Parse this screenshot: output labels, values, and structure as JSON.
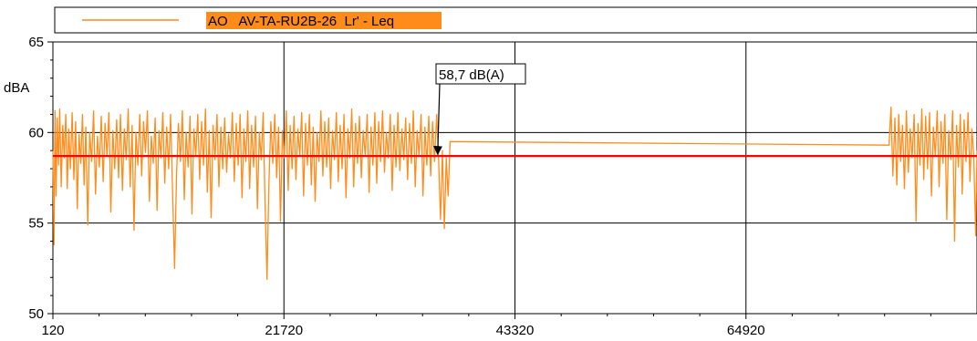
{
  "chart_data": {
    "type": "line",
    "ylabel": "dBA",
    "xlim": [
      120,
      86520
    ],
    "ylim": [
      50,
      65
    ],
    "x_ticks": [
      120,
      21720,
      43320,
      64920
    ],
    "y_ticks": [
      50,
      55,
      60,
      65
    ],
    "grid": true,
    "legend_position": "top",
    "colors": {
      "series": "#ff8c1a",
      "reference": "#ff0000",
      "legend_highlight": "#ff8c1a"
    },
    "series": [
      {
        "name": "AO   AV-TA-RU2B-26  Lr' - Leq",
        "points": [
          [
            120,
            59.0
          ],
          [
            220,
            53.8
          ],
          [
            320,
            61.2
          ],
          [
            420,
            56.5
          ],
          [
            520,
            60.8
          ],
          [
            640,
            58.2
          ],
          [
            760,
            61.3
          ],
          [
            900,
            57.0
          ],
          [
            1040,
            60.4
          ],
          [
            1180,
            58.6
          ],
          [
            1320,
            61.0
          ],
          [
            1460,
            56.9
          ],
          [
            1600,
            60.2
          ],
          [
            1760,
            58.0
          ],
          [
            1920,
            61.1
          ],
          [
            2080,
            57.4
          ],
          [
            2240,
            60.6
          ],
          [
            2400,
            55.8
          ],
          [
            2560,
            59.9
          ],
          [
            2720,
            58.3
          ],
          [
            2880,
            61.0
          ],
          [
            3040,
            57.1
          ],
          [
            3200,
            60.3
          ],
          [
            3380,
            54.9
          ],
          [
            3560,
            60.0
          ],
          [
            3740,
            58.4
          ],
          [
            3920,
            61.2
          ],
          [
            4100,
            56.6
          ],
          [
            4280,
            59.8
          ],
          [
            4460,
            58.1
          ],
          [
            4640,
            60.9
          ],
          [
            4820,
            57.3
          ],
          [
            5000,
            60.5
          ],
          [
            5180,
            58.7
          ],
          [
            5360,
            61.1
          ],
          [
            5540,
            55.6
          ],
          [
            5720,
            60.1
          ],
          [
            5900,
            58.0
          ],
          [
            6080,
            60.7
          ],
          [
            6260,
            57.5
          ],
          [
            6440,
            61.0
          ],
          [
            6620,
            56.8
          ],
          [
            6800,
            60.2
          ],
          [
            6980,
            58.5
          ],
          [
            7160,
            61.3
          ],
          [
            7340,
            57.0
          ],
          [
            7520,
            60.4
          ],
          [
            7700,
            54.6
          ],
          [
            7880,
            60.0
          ],
          [
            8060,
            58.2
          ],
          [
            8240,
            61.0
          ],
          [
            8420,
            57.6
          ],
          [
            8600,
            60.6
          ],
          [
            8780,
            58.9
          ],
          [
            8960,
            61.2
          ],
          [
            9140,
            56.2
          ],
          [
            9320,
            59.8
          ],
          [
            9500,
            58.3
          ],
          [
            9680,
            60.8
          ],
          [
            9860,
            55.7
          ],
          [
            10040,
            60.1
          ],
          [
            10220,
            58.6
          ],
          [
            10400,
            61.1
          ],
          [
            10580,
            57.2
          ],
          [
            10760,
            60.3
          ],
          [
            10940,
            58.0
          ],
          [
            11120,
            61.0
          ],
          [
            11300,
            56.9
          ],
          [
            11500,
            52.5
          ],
          [
            11680,
            57.6
          ],
          [
            11860,
            60.5
          ],
          [
            12040,
            58.4
          ],
          [
            12220,
            61.2
          ],
          [
            12400,
            56.3
          ],
          [
            12580,
            60.0
          ],
          [
            12760,
            58.1
          ],
          [
            12940,
            60.9
          ],
          [
            13120,
            55.5
          ],
          [
            13300,
            60.2
          ],
          [
            13480,
            58.7
          ],
          [
            13660,
            61.0
          ],
          [
            13840,
            57.4
          ],
          [
            14020,
            60.6
          ],
          [
            14200,
            58.2
          ],
          [
            14380,
            61.3
          ],
          [
            14560,
            56.7
          ],
          [
            14740,
            60.1
          ],
          [
            14920,
            55.3
          ],
          [
            15100,
            60.4
          ],
          [
            15280,
            58.5
          ],
          [
            15460,
            61.0
          ],
          [
            15640,
            57.0
          ],
          [
            15820,
            60.3
          ],
          [
            16000,
            58.0
          ],
          [
            16180,
            60.8
          ],
          [
            16360,
            57.8
          ],
          [
            16540,
            59.9
          ],
          [
            16720,
            58.6
          ],
          [
            16900,
            61.1
          ],
          [
            17080,
            57.3
          ],
          [
            17260,
            60.5
          ],
          [
            17440,
            58.2
          ],
          [
            17620,
            61.0
          ],
          [
            17800,
            56.4
          ],
          [
            17980,
            60.2
          ],
          [
            18160,
            58.4
          ],
          [
            18340,
            61.2
          ],
          [
            18520,
            56.9
          ],
          [
            18700,
            60.4
          ],
          [
            18880,
            58.1
          ],
          [
            19060,
            60.9
          ],
          [
            19240,
            55.8
          ],
          [
            19420,
            60.0
          ],
          [
            19600,
            58.5
          ],
          [
            19780,
            61.1
          ],
          [
            19960,
            56.0
          ],
          [
            20140,
            51.9
          ],
          [
            20320,
            57.2
          ],
          [
            20500,
            60.6
          ],
          [
            20680,
            58.3
          ],
          [
            20860,
            61.0
          ],
          [
            21040,
            57.5
          ],
          [
            21220,
            60.3
          ],
          [
            21400,
            55.1
          ],
          [
            21580,
            60.1
          ],
          [
            21760,
            58.6
          ],
          [
            21940,
            61.2
          ],
          [
            22120,
            56.8
          ],
          [
            22300,
            60.4
          ],
          [
            22480,
            58.0
          ],
          [
            22660,
            60.9
          ],
          [
            22840,
            57.4
          ],
          [
            23020,
            60.2
          ],
          [
            23200,
            58.7
          ],
          [
            23380,
            61.1
          ],
          [
            23560,
            56.5
          ],
          [
            23740,
            60.5
          ],
          [
            23920,
            58.2
          ],
          [
            24100,
            61.0
          ],
          [
            24280,
            57.1
          ],
          [
            24460,
            60.3
          ],
          [
            24640,
            56.2
          ],
          [
            24820,
            60.0
          ],
          [
            25000,
            58.4
          ],
          [
            25180,
            61.2
          ],
          [
            25360,
            57.6
          ],
          [
            25540,
            60.6
          ],
          [
            25720,
            58.1
          ],
          [
            25900,
            60.8
          ],
          [
            26080,
            56.9
          ],
          [
            26260,
            60.1
          ],
          [
            26440,
            58.5
          ],
          [
            26620,
            61.1
          ],
          [
            26800,
            57.3
          ],
          [
            26980,
            60.4
          ],
          [
            27160,
            58.0
          ],
          [
            27340,
            61.0
          ],
          [
            27520,
            56.4
          ],
          [
            27700,
            60.2
          ],
          [
            27880,
            58.6
          ],
          [
            28060,
            61.3
          ],
          [
            28240,
            57.0
          ],
          [
            28420,
            60.5
          ],
          [
            28600,
            58.3
          ],
          [
            28780,
            60.9
          ],
          [
            28960,
            57.5
          ],
          [
            29140,
            60.1
          ],
          [
            29320,
            58.7
          ],
          [
            29500,
            61.0
          ],
          [
            29680,
            56.7
          ],
          [
            29860,
            60.3
          ],
          [
            30040,
            58.2
          ],
          [
            30220,
            61.1
          ],
          [
            30400,
            57.2
          ],
          [
            30580,
            60.6
          ],
          [
            30760,
            58.4
          ],
          [
            30940,
            61.2
          ],
          [
            31120,
            57.8
          ],
          [
            31300,
            60.0
          ],
          [
            31480,
            58.6
          ],
          [
            31660,
            61.0
          ],
          [
            31840,
            56.8
          ],
          [
            32020,
            60.4
          ],
          [
            32200,
            58.1
          ],
          [
            32380,
            61.1
          ],
          [
            32560,
            57.9
          ],
          [
            32740,
            60.2
          ],
          [
            32920,
            58.5
          ],
          [
            33100,
            60.8
          ],
          [
            33280,
            57.4
          ],
          [
            33460,
            60.5
          ],
          [
            33640,
            58.3
          ],
          [
            33820,
            61.2
          ],
          [
            34000,
            57.0
          ],
          [
            34180,
            60.1
          ],
          [
            34360,
            58.7
          ],
          [
            34540,
            61.0
          ],
          [
            34720,
            56.5
          ],
          [
            34900,
            60.3
          ],
          [
            35080,
            58.2
          ],
          [
            35260,
            60.9
          ],
          [
            35440,
            57.6
          ],
          [
            35620,
            60.6
          ],
          [
            35800,
            58.4
          ],
          [
            36000,
            61.0
          ],
          [
            36180,
            58.5
          ],
          [
            36360,
            55.2
          ],
          [
            36540,
            59.0
          ],
          [
            36720,
            54.7
          ],
          [
            36900,
            58.6
          ],
          [
            37080,
            56.5
          ],
          [
            37260,
            59.5
          ],
          [
            78300,
            59.3
          ],
          [
            78480,
            61.4
          ],
          [
            78660,
            57.6
          ],
          [
            78840,
            60.8
          ],
          [
            79020,
            57.1
          ],
          [
            79200,
            61.0
          ],
          [
            79380,
            58.4
          ],
          [
            79560,
            60.4
          ],
          [
            79740,
            56.9
          ],
          [
            79920,
            61.2
          ],
          [
            80100,
            57.8
          ],
          [
            80280,
            60.2
          ],
          [
            80460,
            58.6
          ],
          [
            80640,
            61.0
          ],
          [
            80820,
            55.1
          ],
          [
            81000,
            60.5
          ],
          [
            81180,
            58.2
          ],
          [
            81360,
            61.3
          ],
          [
            81540,
            57.4
          ],
          [
            81720,
            60.9
          ],
          [
            81900,
            58.0
          ],
          [
            82080,
            61.1
          ],
          [
            82260,
            56.5
          ],
          [
            82440,
            60.3
          ],
          [
            82620,
            58.7
          ],
          [
            82800,
            61.2
          ],
          [
            82980,
            57.0
          ],
          [
            83160,
            60.6
          ],
          [
            83340,
            58.3
          ],
          [
            83520,
            61.0
          ],
          [
            83700,
            55.2
          ],
          [
            83880,
            60.1
          ],
          [
            84060,
            58.5
          ],
          [
            84240,
            61.2
          ],
          [
            84420,
            54.0
          ],
          [
            84600,
            60.4
          ],
          [
            84780,
            58.1
          ],
          [
            84960,
            61.0
          ],
          [
            85140,
            56.6
          ],
          [
            85320,
            60.7
          ],
          [
            85500,
            58.4
          ],
          [
            85680,
            61.1
          ],
          [
            85860,
            57.3
          ],
          [
            86040,
            60.2
          ],
          [
            86220,
            58.6
          ],
          [
            86400,
            54.3
          ],
          [
            86520,
            59.0
          ]
        ]
      }
    ],
    "reference_line": {
      "value": 58.7
    },
    "annotation": {
      "text": "58,7 dB(A)",
      "x": 36100,
      "y": 58.7
    }
  }
}
